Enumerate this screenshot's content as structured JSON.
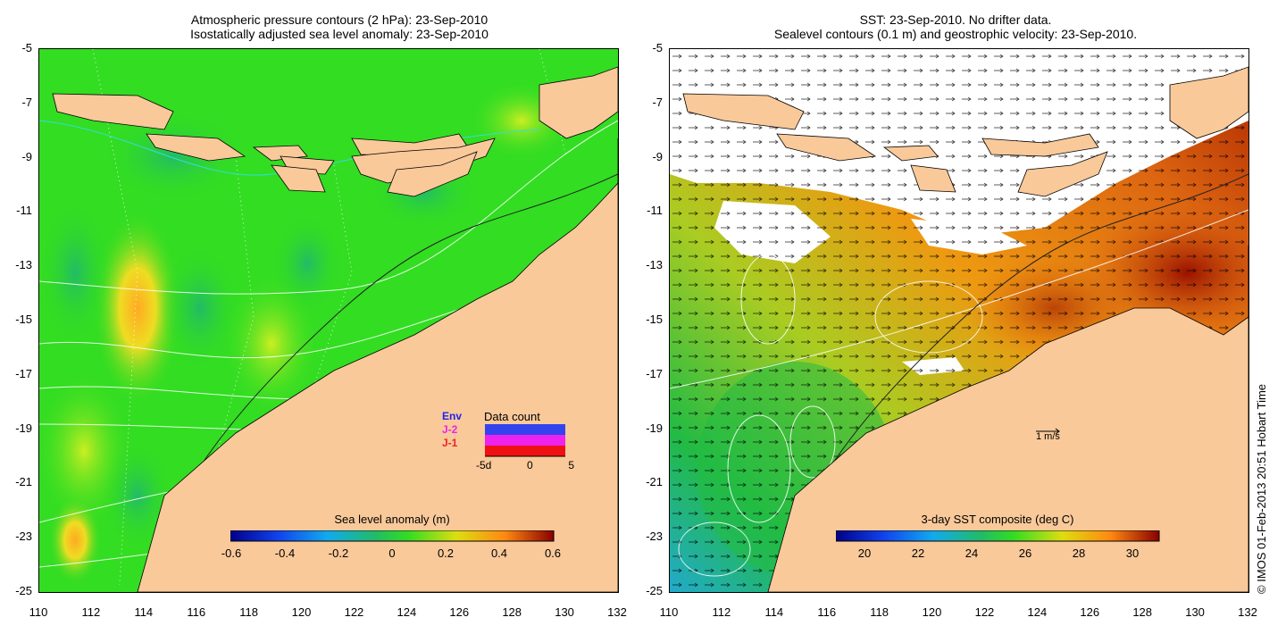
{
  "left_panel": {
    "title_line1": "Atmospheric pressure contours (2 hPa): 23-Sep-2010",
    "title_line2": "Isostatically adjusted sea level anomaly: 23-Sep-2010",
    "colorbar_label": "Sea level anomaly (m)",
    "colorbar_ticks": [
      "-0.6",
      "-0.4",
      "-0.2",
      "0",
      "0.2",
      "0.4",
      "0.6"
    ],
    "inset": {
      "title": "Data count",
      "legend": [
        "Env",
        "J-2",
        "J-1"
      ],
      "x_ticks": [
        "-5d",
        "0",
        "5"
      ]
    }
  },
  "right_panel": {
    "title_line1": "SST: 23-Sep-2010. No drifter data.",
    "title_line2": "Sealevel contours (0.1 m) and geostrophic velocity: 23-Sep-2010.",
    "colorbar_label": "3-day SST composite (deg C)",
    "colorbar_ticks": [
      "20",
      "22",
      "24",
      "26",
      "28",
      "30"
    ],
    "scale_arrow_label": "1 m/s"
  },
  "axes": {
    "y_ticks": [
      "-5",
      "-7",
      "-9",
      "-11",
      "-13",
      "-15",
      "-17",
      "-19",
      "-21",
      "-23",
      "-25"
    ],
    "x_ticks": [
      "110",
      "112",
      "114",
      "116",
      "118",
      "120",
      "122",
      "124",
      "126",
      "128",
      "130",
      "132"
    ]
  },
  "credit": "© IMOS 01-Feb-2013 20:51 Hobart Time",
  "colors": {
    "land": "#f9c99a",
    "ocean_green": "#33dd22",
    "sst_orange": "#ee8811"
  }
}
